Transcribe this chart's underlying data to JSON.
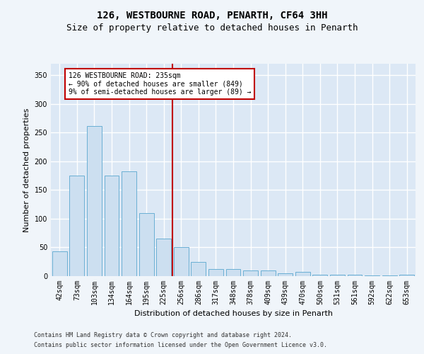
{
  "title": "126, WESTBOURNE ROAD, PENARTH, CF64 3HH",
  "subtitle": "Size of property relative to detached houses in Penarth",
  "xlabel": "Distribution of detached houses by size in Penarth",
  "ylabel": "Number of detached properties",
  "categories": [
    "42sqm",
    "73sqm",
    "103sqm",
    "134sqm",
    "164sqm",
    "195sqm",
    "225sqm",
    "256sqm",
    "286sqm",
    "317sqm",
    "348sqm",
    "378sqm",
    "409sqm",
    "439sqm",
    "470sqm",
    "500sqm",
    "531sqm",
    "561sqm",
    "592sqm",
    "622sqm",
    "653sqm"
  ],
  "values": [
    43,
    175,
    262,
    175,
    183,
    110,
    65,
    50,
    25,
    12,
    12,
    10,
    10,
    5,
    8,
    3,
    2,
    2,
    1,
    1,
    3
  ],
  "bar_color": "#ccdff0",
  "bar_edge_color": "#6aafd4",
  "annotation_line1": "126 WESTBOURNE ROAD: 235sqm",
  "annotation_line2": "← 90% of detached houses are smaller (849)",
  "annotation_line3": "9% of semi-detached houses are larger (89) →",
  "annotation_box_color": "#ffffff",
  "annotation_box_edge_color": "#c00000",
  "reference_line_color": "#c00000",
  "ylim": [
    0,
    370
  ],
  "yticks": [
    0,
    50,
    100,
    150,
    200,
    250,
    300,
    350
  ],
  "background_color": "#dce8f5",
  "grid_color": "#ffffff",
  "footer1": "Contains HM Land Registry data © Crown copyright and database right 2024.",
  "footer2": "Contains public sector information licensed under the Open Government Licence v3.0.",
  "title_fontsize": 10,
  "subtitle_fontsize": 9,
  "axis_label_fontsize": 8,
  "tick_fontsize": 7,
  "footer_fontsize": 6
}
